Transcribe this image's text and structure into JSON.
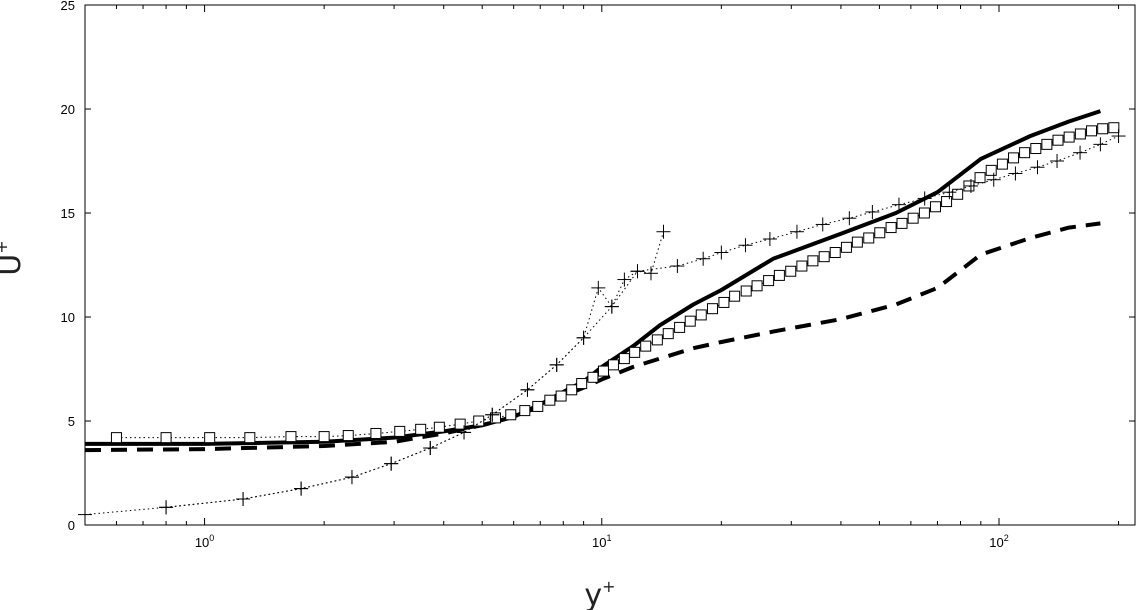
{
  "chart_data": {
    "type": "line",
    "title": "",
    "xlabel": "y",
    "xlabel_sup": "+",
    "ylabel": "U",
    "ylabel_sup": "+",
    "xscale": "log",
    "xlim": [
      0.5,
      220
    ],
    "ylim": [
      0,
      25
    ],
    "grid": false,
    "legend": "none",
    "xticks": [
      {
        "value": 1,
        "base": "10",
        "exp": "0"
      },
      {
        "value": 10,
        "base": "10",
        "exp": "1"
      },
      {
        "value": 100,
        "base": "10",
        "exp": "2"
      }
    ],
    "yticks": [
      0,
      5,
      10,
      15,
      20,
      25
    ],
    "series": [
      {
        "style": "solid-thick",
        "color": "#000000",
        "x": [
          0.5,
          1,
          2,
          3,
          4,
          5,
          6,
          7,
          8,
          9,
          10,
          12,
          14,
          17,
          20,
          27,
          40,
          55,
          70,
          90,
          120,
          150,
          180
        ],
        "y": [
          3.9,
          3.9,
          4.0,
          4.2,
          4.5,
          4.8,
          5.2,
          5.8,
          6.4,
          6.9,
          7.6,
          8.6,
          9.6,
          10.6,
          11.3,
          12.8,
          14.0,
          15.0,
          16.0,
          17.6,
          18.7,
          19.4,
          19.9
        ]
      },
      {
        "style": "dashed-thick",
        "color": "#000000",
        "x": [
          0.5,
          1,
          2,
          3,
          4,
          5,
          6,
          7,
          8,
          9,
          10,
          12,
          14,
          17,
          20,
          27,
          40,
          55,
          70,
          90,
          120,
          150,
          180
        ],
        "y": [
          3.6,
          3.65,
          3.8,
          4.0,
          4.4,
          4.8,
          5.2,
          5.7,
          6.2,
          6.6,
          7.0,
          7.6,
          8.0,
          8.5,
          8.8,
          9.3,
          9.9,
          10.6,
          11.4,
          13.0,
          13.8,
          14.3,
          14.5
        ]
      },
      {
        "style": "dotted-square",
        "color": "#000000",
        "marker": "square",
        "x": [
          0.6,
          0.8,
          1.03,
          1.3,
          1.65,
          2.0,
          2.3,
          2.7,
          3.1,
          3.5,
          3.9,
          4.4,
          4.9,
          5.4,
          5.9,
          6.4,
          6.9,
          7.4,
          7.9,
          8.4,
          8.9,
          9.5,
          10.1,
          10.7,
          11.4,
          12.1,
          12.9,
          13.8,
          14.7,
          15.7,
          16.7,
          17.8,
          19.0,
          20.3,
          21.6,
          23.1,
          24.6,
          26.3,
          28.0,
          29.9,
          31.9,
          34.0,
          36.3,
          38.7,
          41.3,
          44.0,
          47.0,
          50.1,
          53.5,
          57.0,
          60.8,
          64.9,
          69.2,
          73.8,
          78.7,
          84.0,
          89.6,
          95.6,
          102.0,
          108.8,
          116.0,
          123.8,
          132.0,
          140.8,
          150.2,
          160.3,
          171.0,
          182.4,
          194.6
        ],
        "y": [
          4.2,
          4.2,
          4.2,
          4.2,
          4.25,
          4.25,
          4.3,
          4.4,
          4.5,
          4.6,
          4.7,
          4.85,
          5.0,
          5.15,
          5.3,
          5.5,
          5.7,
          6.0,
          6.2,
          6.5,
          6.8,
          7.1,
          7.4,
          7.7,
          8.0,
          8.3,
          8.6,
          8.9,
          9.2,
          9.5,
          9.8,
          10.1,
          10.4,
          10.7,
          11.0,
          11.25,
          11.5,
          11.75,
          12.0,
          12.2,
          12.45,
          12.7,
          12.9,
          13.1,
          13.35,
          13.6,
          13.8,
          14.05,
          14.3,
          14.5,
          14.75,
          15.0,
          15.3,
          15.55,
          15.9,
          16.3,
          16.7,
          17.05,
          17.35,
          17.65,
          17.9,
          18.1,
          18.3,
          18.5,
          18.65,
          18.8,
          18.95,
          19.05,
          19.1
        ]
      },
      {
        "style": "dotted-plus",
        "color": "#000000",
        "marker": "plus",
        "x": [
          0.8,
          1.25,
          1.75,
          2.35,
          2.95,
          3.7,
          4.5,
          5.3,
          6.5,
          7.7,
          9.0,
          9.8,
          10.6,
          11.4,
          12.3,
          13.3,
          14.3
        ],
        "y": [
          0.85,
          1.25,
          1.75,
          2.3,
          2.95,
          3.7,
          4.45,
          5.3,
          6.5,
          7.7,
          9.0,
          11.4,
          10.5,
          11.8,
          12.2,
          12.1,
          14.1
        ]
      },
      {
        "style": "dotted-plus",
        "color": "#000000",
        "marker": "plus",
        "x": [
          0.5,
          0.8,
          1.25,
          1.75,
          2.35,
          2.95,
          3.7,
          4.5,
          5.3,
          6.5,
          7.7,
          9.0,
          10.6,
          12.3,
          15.5,
          18.0,
          20.0,
          23.0,
          26.5,
          31.0,
          36.0,
          42.0,
          48.0,
          56.0,
          65.0,
          75.0,
          85.0,
          97.0,
          110.0,
          125.0,
          140.0,
          160.0,
          180.0,
          200.0
        ],
        "y": [
          0.5,
          0.85,
          1.25,
          1.75,
          2.3,
          2.95,
          3.7,
          4.45,
          5.3,
          6.5,
          7.7,
          9.0,
          10.5,
          12.2,
          12.45,
          12.8,
          13.1,
          13.45,
          13.75,
          14.1,
          14.45,
          14.75,
          15.05,
          15.4,
          15.7,
          16.0,
          16.3,
          16.6,
          16.9,
          17.2,
          17.5,
          17.9,
          18.3,
          18.7
        ]
      }
    ]
  }
}
